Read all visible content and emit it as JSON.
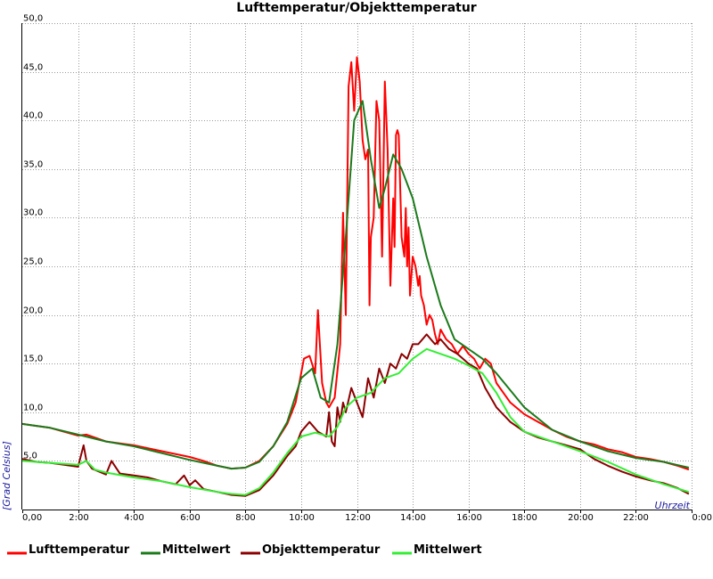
{
  "chart_data": {
    "type": "line",
    "title": "Lufttemperatur/Objekttemperatur",
    "xlabel": "Uhrzeit",
    "ylabel": "[Grad Celsius]",
    "xlim": [
      0,
      24
    ],
    "ylim": [
      0,
      50
    ],
    "grid": true,
    "legend_position": "bottom",
    "x_ticks": [
      {
        "value": 0,
        "label": "0,00"
      },
      {
        "value": 2,
        "label": "2:00"
      },
      {
        "value": 4,
        "label": "4:00"
      },
      {
        "value": 6,
        "label": "6:00"
      },
      {
        "value": 8,
        "label": "8:00"
      },
      {
        "value": 10,
        "label": "10:00"
      },
      {
        "value": 12,
        "label": "12:00"
      },
      {
        "value": 14,
        "label": "14:00"
      },
      {
        "value": 16,
        "label": "16:00"
      },
      {
        "value": 18,
        "label": "18:00"
      },
      {
        "value": 20,
        "label": "20:00"
      },
      {
        "value": 22,
        "label": "22:00"
      },
      {
        "value": 24,
        "label": "0:00"
      }
    ],
    "y_ticks": [
      {
        "value": 5,
        "label": "5,0"
      },
      {
        "value": 10,
        "label": "10,0"
      },
      {
        "value": 15,
        "label": "15,0"
      },
      {
        "value": 20,
        "label": "20,0"
      },
      {
        "value": 25,
        "label": "25,0"
      },
      {
        "value": 30,
        "label": "30,0"
      },
      {
        "value": 35,
        "label": "35,0"
      },
      {
        "value": 40,
        "label": "40,0"
      },
      {
        "value": 45,
        "label": "45,0"
      },
      {
        "value": 50,
        "label": "50,0"
      }
    ],
    "series": [
      {
        "name": "Lufttemperatur",
        "color": "#ff0000",
        "x": [
          0,
          0.5,
          1,
          1.5,
          2,
          2.3,
          2.5,
          3,
          4,
          5,
          6,
          6.5,
          7,
          7.5,
          8,
          8.5,
          9,
          9.5,
          9.8,
          10,
          10.1,
          10.3,
          10.5,
          10.6,
          10.75,
          10.9,
          11,
          11.2,
          11.4,
          11.5,
          11.6,
          11.7,
          11.8,
          11.9,
          12,
          12.1,
          12.2,
          12.3,
          12.4,
          12.45,
          12.5,
          12.6,
          12.7,
          12.8,
          12.85,
          12.9,
          13,
          13.1,
          13.2,
          13.3,
          13.35,
          13.4,
          13.45,
          13.5,
          13.6,
          13.7,
          13.75,
          13.8,
          13.85,
          13.9,
          14,
          14.1,
          14.2,
          14.25,
          14.3,
          14.4,
          14.5,
          14.6,
          14.7,
          14.8,
          14.9,
          15,
          15.2,
          15.4,
          15.6,
          15.8,
          16,
          16.2,
          16.4,
          16.6,
          16.8,
          17,
          17.5,
          18,
          18.5,
          19,
          19.5,
          20,
          20.5,
          21,
          21.5,
          22,
          22.5,
          23,
          23.5,
          23.9
        ],
        "values": [
          8.8,
          8.6,
          8.4,
          8.0,
          7.6,
          7.7,
          7.5,
          7.0,
          6.6,
          6.0,
          5.4,
          5.0,
          4.5,
          4.2,
          4.3,
          5.0,
          6.5,
          8.8,
          11.0,
          14.0,
          15.5,
          15.8,
          14.0,
          20.5,
          13.0,
          11.0,
          10.5,
          11.5,
          17.0,
          30.5,
          20.0,
          43.5,
          46.0,
          41.0,
          46.5,
          44.0,
          38.0,
          36.0,
          37.0,
          21.0,
          28.0,
          30.0,
          42.0,
          40.0,
          33.0,
          26.0,
          44.0,
          37.0,
          23.0,
          32.0,
          27.0,
          38.5,
          39.0,
          38.5,
          28.0,
          26.0,
          31.0,
          25.0,
          29.0,
          22.0,
          26.0,
          25.0,
          23.0,
          24.0,
          22.0,
          21.0,
          19.0,
          20.0,
          19.5,
          18.0,
          17.0,
          18.5,
          17.5,
          17.0,
          16.0,
          16.8,
          16.0,
          15.5,
          14.5,
          15.5,
          15.0,
          13.0,
          11.0,
          9.8,
          9.0,
          8.2,
          7.5,
          7.0,
          6.7,
          6.2,
          5.9,
          5.4,
          5.2,
          4.9,
          4.5,
          4.1
        ]
      },
      {
        "name": "Mittelwert",
        "color": "#1b7a1b",
        "x": [
          0,
          1,
          2,
          3,
          4,
          5,
          6,
          7,
          7.5,
          8,
          8.5,
          9,
          9.5,
          10,
          10.4,
          10.7,
          11,
          11.3,
          11.6,
          11.9,
          12.2,
          12.5,
          12.8,
          13,
          13.3,
          13.6,
          14,
          14.5,
          15,
          15.5,
          16,
          16.5,
          17,
          18,
          19,
          20,
          21,
          22,
          23,
          23.9
        ],
        "values": [
          8.8,
          8.4,
          7.7,
          7.0,
          6.5,
          5.8,
          5.1,
          4.5,
          4.2,
          4.3,
          4.9,
          6.5,
          9.0,
          13.5,
          14.5,
          11.5,
          11.0,
          17.0,
          28.0,
          40.0,
          42.0,
          36.0,
          31.0,
          33.0,
          36.5,
          35.0,
          32.0,
          26.0,
          21.0,
          17.5,
          16.5,
          15.5,
          14.0,
          10.5,
          8.2,
          7.0,
          6.0,
          5.3,
          4.9,
          4.3
        ]
      },
      {
        "name": "Objekttemperatur",
        "color": "#8b0000",
        "x": [
          0,
          0.5,
          1,
          1.5,
          2,
          2.1,
          2.2,
          2.3,
          2.5,
          3,
          3.2,
          3.5,
          4,
          4.5,
          5,
          5.5,
          5.8,
          6,
          6.2,
          6.5,
          7,
          7.5,
          8,
          8.5,
          9,
          9.5,
          9.8,
          10,
          10.3,
          10.6,
          10.9,
          11,
          11.1,
          11.2,
          11.3,
          11.4,
          11.5,
          11.6,
          11.8,
          12,
          12.2,
          12.4,
          12.6,
          12.8,
          13,
          13.2,
          13.4,
          13.6,
          13.8,
          14,
          14.2,
          14.5,
          14.8,
          15,
          15.3,
          15.6,
          16,
          16.3,
          16.6,
          17,
          17.5,
          18,
          18.5,
          19,
          19.5,
          20,
          20.5,
          21,
          21.5,
          22,
          22.5,
          23,
          23.5,
          23.9
        ],
        "values": [
          5.2,
          4.9,
          4.8,
          4.6,
          4.4,
          5.5,
          6.6,
          5.0,
          4.2,
          3.6,
          5.0,
          3.7,
          3.5,
          3.3,
          2.9,
          2.6,
          3.5,
          2.5,
          3.0,
          2.1,
          1.8,
          1.5,
          1.4,
          2.0,
          3.5,
          5.5,
          6.5,
          8.0,
          9.0,
          8.0,
          7.5,
          10.0,
          7.0,
          6.5,
          10.5,
          9.0,
          11.0,
          10.0,
          12.5,
          11.0,
          9.5,
          13.5,
          11.5,
          14.5,
          13.0,
          15.0,
          14.5,
          16.0,
          15.5,
          17.0,
          17.0,
          18.0,
          17.0,
          17.5,
          16.5,
          16.0,
          15.0,
          14.5,
          12.5,
          10.5,
          9.0,
          8.0,
          7.4,
          7.0,
          6.6,
          6.2,
          5.2,
          4.5,
          3.9,
          3.4,
          3.0,
          2.7,
          2.2,
          1.6
        ]
      },
      {
        "name": "Mittelwert",
        "color": "#33ee33",
        "x": [
          0,
          1,
          2,
          2.3,
          2.6,
          3,
          4,
          5,
          6,
          7,
          7.5,
          8,
          8.5,
          9,
          9.5,
          10,
          10.5,
          11,
          11.3,
          11.6,
          12,
          12.5,
          13,
          13.5,
          14,
          14.5,
          15,
          15.5,
          16,
          16.5,
          17,
          17.5,
          18,
          19,
          20,
          21,
          22,
          23,
          23.9
        ],
        "values": [
          5.0,
          4.8,
          4.6,
          5.0,
          4.1,
          3.8,
          3.3,
          2.9,
          2.3,
          1.8,
          1.6,
          1.5,
          2.2,
          3.8,
          5.8,
          7.5,
          7.9,
          7.5,
          8.5,
          10.5,
          11.5,
          12.0,
          13.5,
          14.0,
          15.5,
          16.5,
          16.0,
          15.5,
          14.8,
          14.0,
          12.0,
          9.5,
          8.0,
          7.0,
          6.0,
          4.9,
          3.6,
          2.6,
          1.8
        ]
      }
    ]
  }
}
